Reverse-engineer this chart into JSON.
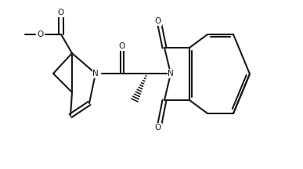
{
  "bg_color": "#ffffff",
  "line_color": "#1a1a1a",
  "line_width": 1.5,
  "figsize": [
    3.87,
    2.16
  ],
  "dpi": 100,
  "xlim": [
    0,
    3.87
  ],
  "ylim": [
    0,
    2.16
  ]
}
